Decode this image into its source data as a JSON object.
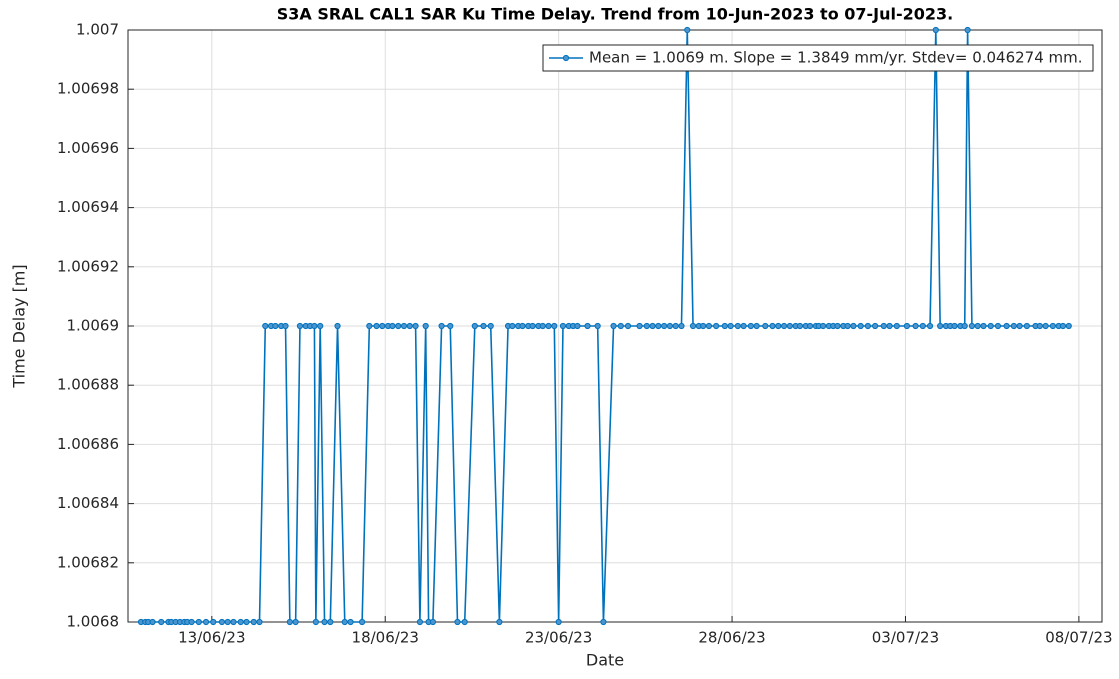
{
  "chart_data": {
    "type": "line",
    "title": "S3A SRAL CAL1 SAR Ku Time Delay. Trend from 10-Jun-2023 to 07-Jul-2023.",
    "x_label": "Date",
    "y_label": "Time Delay [m]",
    "grid": true,
    "legend": "top-right",
    "xlim": [
      "2023-06-10T14:00",
      "2023-07-08T16:00"
    ],
    "xticks": [
      {
        "value": "2023-06-13T00:00",
        "label": "13/06/23"
      },
      {
        "value": "2023-06-18T00:00",
        "label": "18/06/23"
      },
      {
        "value": "2023-06-23T00:00",
        "label": "23/06/23"
      },
      {
        "value": "2023-06-28T00:00",
        "label": "28/06/23"
      },
      {
        "value": "2023-07-03T00:00",
        "label": "03/07/23"
      },
      {
        "value": "2023-07-08T00:00",
        "label": "08/07/23"
      }
    ],
    "ylim": [
      1.0068,
      1.007
    ],
    "yticks": [
      1.0068,
      1.00682,
      1.00684,
      1.00686,
      1.00688,
      1.0069,
      1.00692,
      1.00694,
      1.00696,
      1.00698,
      1.007
    ],
    "x": [
      "2023-06-10T23:00",
      "2023-06-11T02:00",
      "2023-06-11T04:00",
      "2023-06-11T07:00",
      "2023-06-11T13:00",
      "2023-06-11T18:00",
      "2023-06-11T20:00",
      "2023-06-11T23:00",
      "2023-06-12T02:00",
      "2023-06-12T05:00",
      "2023-06-12T07:00",
      "2023-06-12T10:00",
      "2023-06-12T15:00",
      "2023-06-12T20:00",
      "2023-06-13T01:00",
      "2023-06-13T07:00",
      "2023-06-13T11:00",
      "2023-06-13T15:00",
      "2023-06-13T20:00",
      "2023-06-14T00:00",
      "2023-06-14T05:00",
      "2023-06-14T09:00",
      "2023-06-14T13:00",
      "2023-06-14T17:00",
      "2023-06-14T20:00",
      "2023-06-15T00:00",
      "2023-06-15T03:00",
      "2023-06-15T06:00",
      "2023-06-15T10:00",
      "2023-06-15T13:00",
      "2023-06-15T17:00",
      "2023-06-15T20:00",
      "2023-06-15T23:00",
      "2023-06-16T00:00",
      "2023-06-16T03:00",
      "2023-06-16T06:00",
      "2023-06-16T10:00",
      "2023-06-16T15:00",
      "2023-06-16T20:00",
      "2023-06-17T00:00",
      "2023-06-17T08:00",
      "2023-06-17T13:00",
      "2023-06-17T18:00",
      "2023-06-17T22:00",
      "2023-06-18T02:00",
      "2023-06-18T05:00",
      "2023-06-18T09:00",
      "2023-06-18T13:00",
      "2023-06-18T17:00",
      "2023-06-18T21:00",
      "2023-06-19T00:00",
      "2023-06-19T04:00",
      "2023-06-19T06:00",
      "2023-06-19T09:00",
      "2023-06-19T15:00",
      "2023-06-19T21:00",
      "2023-06-20T02:00",
      "2023-06-20T07:00",
      "2023-06-20T14:00",
      "2023-06-20T20:00",
      "2023-06-21T01:00",
      "2023-06-21T07:00",
      "2023-06-21T13:00",
      "2023-06-21T16:00",
      "2023-06-21T20:00",
      "2023-06-21T23:00",
      "2023-06-22T03:00",
      "2023-06-22T06:00",
      "2023-06-22T10:00",
      "2023-06-22T13:00",
      "2023-06-22T17:00",
      "2023-06-22T21:00",
      "2023-06-23T00:00",
      "2023-06-23T03:00",
      "2023-06-23T07:00",
      "2023-06-23T10:00",
      "2023-06-23T13:00",
      "2023-06-23T20:00",
      "2023-06-24T03:00",
      "2023-06-24T07:00",
      "2023-06-24T14:00",
      "2023-06-24T19:00",
      "2023-06-25T00:00",
      "2023-06-25T08:00",
      "2023-06-25T13:00",
      "2023-06-25T17:00",
      "2023-06-25T21:00",
      "2023-06-26T01:00",
      "2023-06-26T05:00",
      "2023-06-26T09:00",
      "2023-06-26T13:00",
      "2023-06-26T17:00",
      "2023-06-26T21:00",
      "2023-06-27T01:00",
      "2023-06-27T04:00",
      "2023-06-27T08:00",
      "2023-06-27T13:00",
      "2023-06-27T19:00",
      "2023-06-27T23:00",
      "2023-06-28T04:00",
      "2023-06-28T08:00",
      "2023-06-28T13:00",
      "2023-06-28T17:00",
      "2023-06-28T23:00",
      "2023-06-29T04:00",
      "2023-06-29T08:00",
      "2023-06-29T12:00",
      "2023-06-29T16:00",
      "2023-06-29T20:00",
      "2023-06-29T23:00",
      "2023-06-30T03:00",
      "2023-06-30T06:00",
      "2023-06-30T10:00",
      "2023-06-30T12:00",
      "2023-06-30T15:00",
      "2023-06-30T19:00",
      "2023-06-30T22:00",
      "2023-07-01T01:00",
      "2023-07-01T05:00",
      "2023-07-01T08:00",
      "2023-07-01T12:00",
      "2023-07-01T17:00",
      "2023-07-01T22:00",
      "2023-07-02T03:00",
      "2023-07-02T09:00",
      "2023-07-02T13:00",
      "2023-07-02T18:00",
      "2023-07-03T01:00",
      "2023-07-03T07:00",
      "2023-07-03T12:00",
      "2023-07-03T17:00",
      "2023-07-03T21:00",
      "2023-07-04T00:00",
      "2023-07-04T04:00",
      "2023-07-04T07:00",
      "2023-07-04T10:00",
      "2023-07-04T14:00",
      "2023-07-04T17:00",
      "2023-07-04T19:00",
      "2023-07-04T22:00",
      "2023-07-05T02:00",
      "2023-07-05T06:00",
      "2023-07-05T11:00",
      "2023-07-05T16:00",
      "2023-07-05T22:00",
      "2023-07-06T03:00",
      "2023-07-06T07:00",
      "2023-07-06T12:00",
      "2023-07-06T18:00",
      "2023-07-06T21:00",
      "2023-07-07T01:00",
      "2023-07-07T06:00",
      "2023-07-07T10:00",
      "2023-07-07T13:00",
      "2023-07-07T17:00"
    ],
    "series": [
      {
        "name": "Mean = 1.0069 m. Slope = 1.3849 mm/yr. Stdev= 0.046274 mm.",
        "color": "#0072bd",
        "values": [
          1.0068,
          1.0068,
          1.0068,
          1.0068,
          1.0068,
          1.0068,
          1.0068,
          1.0068,
          1.0068,
          1.0068,
          1.0068,
          1.0068,
          1.0068,
          1.0068,
          1.0068,
          1.0068,
          1.0068,
          1.0068,
          1.0068,
          1.0068,
          1.0068,
          1.0068,
          1.0069,
          1.0069,
          1.0069,
          1.0069,
          1.0069,
          1.0068,
          1.0068,
          1.0069,
          1.0069,
          1.0069,
          1.0069,
          1.0068,
          1.0069,
          1.0068,
          1.0068,
          1.0069,
          1.0068,
          1.0068,
          1.0068,
          1.0069,
          1.0069,
          1.0069,
          1.0069,
          1.0069,
          1.0069,
          1.0069,
          1.0069,
          1.0069,
          1.0068,
          1.0069,
          1.0068,
          1.0068,
          1.0069,
          1.0069,
          1.0068,
          1.0068,
          1.0069,
          1.0069,
          1.0069,
          1.0068,
          1.0069,
          1.0069,
          1.0069,
          1.0069,
          1.0069,
          1.0069,
          1.0069,
          1.0069,
          1.0069,
          1.0069,
          1.0068,
          1.0069,
          1.0069,
          1.0069,
          1.0069,
          1.0069,
          1.0069,
          1.0068,
          1.0069,
          1.0069,
          1.0069,
          1.0069,
          1.0069,
          1.0069,
          1.0069,
          1.0069,
          1.0069,
          1.0069,
          1.0069,
          1.007,
          1.0069,
          1.0069,
          1.0069,
          1.0069,
          1.0069,
          1.0069,
          1.0069,
          1.0069,
          1.0069,
          1.0069,
          1.0069,
          1.0069,
          1.0069,
          1.0069,
          1.0069,
          1.0069,
          1.0069,
          1.0069,
          1.0069,
          1.0069,
          1.0069,
          1.0069,
          1.0069,
          1.0069,
          1.0069,
          1.0069,
          1.0069,
          1.0069,
          1.0069,
          1.0069,
          1.0069,
          1.0069,
          1.0069,
          1.0069,
          1.0069,
          1.0069,
          1.0069,
          1.0069,
          1.0069,
          1.007,
          1.0069,
          1.0069,
          1.0069,
          1.0069,
          1.0069,
          1.0069,
          1.007,
          1.0069,
          1.0069,
          1.0069,
          1.0069,
          1.0069,
          1.0069,
          1.0069,
          1.0069,
          1.0069,
          1.0069,
          1.0069,
          1.0069,
          1.0069,
          1.0069,
          1.0069,
          1.0069
        ]
      }
    ]
  }
}
